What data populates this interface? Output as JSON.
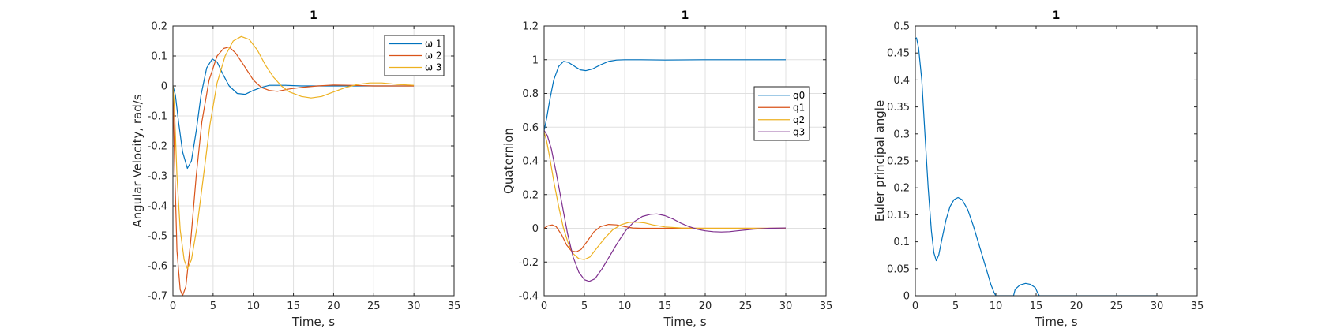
{
  "chart_data": [
    {
      "type": "line",
      "title": "1",
      "xlabel": "Time, s",
      "ylabel": "Angular Velocity, rad/s",
      "xlim": [
        0,
        35
      ],
      "ylim": [
        -0.7,
        0.2
      ],
      "xticks": [
        "0",
        "5",
        "10",
        "15",
        "20",
        "25",
        "30",
        "35"
      ],
      "yticks": [
        "0.2",
        "0.1",
        "0",
        "-0.1",
        "-0.2",
        "-0.3",
        "-0.4",
        "-0.5",
        "-0.6",
        "-0.7"
      ],
      "grid": true,
      "legend_location": "top-right",
      "series": [
        {
          "name": "ω 1",
          "color": "#0072BD",
          "points": [
            [
              0,
              0
            ],
            [
              0.3,
              -0.03
            ],
            [
              0.7,
              -0.12
            ],
            [
              1.2,
              -0.22
            ],
            [
              1.8,
              -0.275
            ],
            [
              2.3,
              -0.25
            ],
            [
              2.9,
              -0.15
            ],
            [
              3.5,
              -0.03
            ],
            [
              4.2,
              0.06
            ],
            [
              4.9,
              0.09
            ],
            [
              5.5,
              0.08
            ],
            [
              6.2,
              0.04
            ],
            [
              7,
              0
            ],
            [
              8,
              -0.025
            ],
            [
              9,
              -0.028
            ],
            [
              10,
              -0.015
            ],
            [
              11,
              -0.005
            ],
            [
              12,
              0.002
            ],
            [
              14,
              0.002
            ],
            [
              16,
              0
            ],
            [
              20,
              0
            ],
            [
              24,
              0
            ],
            [
              30,
              0
            ]
          ]
        },
        {
          "name": "ω 2",
          "color": "#D95319",
          "points": [
            [
              0,
              0
            ],
            [
              0.2,
              -0.25
            ],
            [
              0.5,
              -0.55
            ],
            [
              0.9,
              -0.68
            ],
            [
              1.2,
              -0.7
            ],
            [
              1.6,
              -0.67
            ],
            [
              2.2,
              -0.52
            ],
            [
              2.9,
              -0.3
            ],
            [
              3.6,
              -0.12
            ],
            [
              4.5,
              0.02
            ],
            [
              5.5,
              0.1
            ],
            [
              6.3,
              0.125
            ],
            [
              7,
              0.13
            ],
            [
              7.8,
              0.11
            ],
            [
              8.8,
              0.07
            ],
            [
              10,
              0.02
            ],
            [
              11,
              -0.005
            ],
            [
              12,
              -0.015
            ],
            [
              13,
              -0.018
            ],
            [
              14.5,
              -0.01
            ],
            [
              16,
              -0.005
            ],
            [
              18,
              0
            ],
            [
              20,
              0.003
            ],
            [
              22,
              0.002
            ],
            [
              25,
              0
            ],
            [
              30,
              0
            ]
          ]
        },
        {
          "name": "ω 3",
          "color": "#EDB120",
          "points": [
            [
              0,
              0
            ],
            [
              0.2,
              -0.08
            ],
            [
              0.5,
              -0.3
            ],
            [
              0.9,
              -0.48
            ],
            [
              1.4,
              -0.58
            ],
            [
              1.8,
              -0.61
            ],
            [
              2.3,
              -0.58
            ],
            [
              3,
              -0.47
            ],
            [
              3.8,
              -0.3
            ],
            [
              4.6,
              -0.13
            ],
            [
              5.5,
              0.01
            ],
            [
              6.5,
              0.1
            ],
            [
              7.5,
              0.15
            ],
            [
              8.5,
              0.165
            ],
            [
              9.5,
              0.155
            ],
            [
              10.5,
              0.12
            ],
            [
              11.5,
              0.07
            ],
            [
              12.5,
              0.03
            ],
            [
              13.5,
              0
            ],
            [
              14.5,
              -0.02
            ],
            [
              16,
              -0.035
            ],
            [
              17.2,
              -0.04
            ],
            [
              18.5,
              -0.035
            ],
            [
              20,
              -0.02
            ],
            [
              21.5,
              -0.005
            ],
            [
              23,
              0.005
            ],
            [
              24.5,
              0.01
            ],
            [
              26,
              0.01
            ],
            [
              28,
              0.005
            ],
            [
              30,
              0.002
            ]
          ]
        }
      ]
    },
    {
      "type": "line",
      "title": "1",
      "xlabel": "Time, s",
      "ylabel": "Quaternion",
      "xlim": [
        0,
        35
      ],
      "ylim": [
        -0.4,
        1.2
      ],
      "xticks": [
        "0",
        "5",
        "10",
        "15",
        "20",
        "25",
        "30",
        "35"
      ],
      "yticks": [
        "1.2",
        "1",
        "0.8",
        "0.6",
        "0.4",
        "0.2",
        "0",
        "-0.2",
        "-0.4"
      ],
      "grid": true,
      "legend_location": "right",
      "series": [
        {
          "name": "q0",
          "color": "#0072BD",
          "points": [
            [
              0,
              0.58
            ],
            [
              0.3,
              0.65
            ],
            [
              0.7,
              0.76
            ],
            [
              1.2,
              0.88
            ],
            [
              1.8,
              0.96
            ],
            [
              2.4,
              0.99
            ],
            [
              3,
              0.985
            ],
            [
              3.8,
              0.96
            ],
            [
              4.5,
              0.94
            ],
            [
              5.2,
              0.935
            ],
            [
              6,
              0.945
            ],
            [
              7,
              0.97
            ],
            [
              8,
              0.99
            ],
            [
              9,
              0.998
            ],
            [
              10,
              1
            ],
            [
              12,
              1
            ],
            [
              15,
              0.998
            ],
            [
              20,
              1
            ],
            [
              25,
              1
            ],
            [
              30,
              1
            ]
          ]
        },
        {
          "name": "q1",
          "color": "#D95319",
          "points": [
            [
              0,
              0
            ],
            [
              0.5,
              0.015
            ],
            [
              1,
              0.02
            ],
            [
              1.5,
              0.01
            ],
            [
              2.2,
              -0.04
            ],
            [
              2.8,
              -0.1
            ],
            [
              3.4,
              -0.135
            ],
            [
              4,
              -0.14
            ],
            [
              4.6,
              -0.125
            ],
            [
              5.3,
              -0.08
            ],
            [
              6.2,
              -0.02
            ],
            [
              7,
              0.01
            ],
            [
              8,
              0.023
            ],
            [
              9,
              0.02
            ],
            [
              10,
              0.01
            ],
            [
              11,
              0.002
            ],
            [
              12,
              0
            ],
            [
              14,
              0
            ],
            [
              16,
              0
            ],
            [
              20,
              0
            ],
            [
              25,
              0
            ],
            [
              30,
              0
            ]
          ]
        },
        {
          "name": "q2",
          "color": "#EDB120",
          "points": [
            [
              0,
              0.57
            ],
            [
              0.3,
              0.52
            ],
            [
              0.7,
              0.42
            ],
            [
              1.2,
              0.28
            ],
            [
              1.8,
              0.13
            ],
            [
              2.4,
              0
            ],
            [
              3,
              -0.09
            ],
            [
              3.6,
              -0.15
            ],
            [
              4.3,
              -0.18
            ],
            [
              5,
              -0.185
            ],
            [
              5.7,
              -0.17
            ],
            [
              6.5,
              -0.12
            ],
            [
              7.5,
              -0.06
            ],
            [
              8.5,
              -0.01
            ],
            [
              9.5,
              0.02
            ],
            [
              10.5,
              0.035
            ],
            [
              11.5,
              0.037
            ],
            [
              12.5,
              0.032
            ],
            [
              13.5,
              0.02
            ],
            [
              15,
              0.008
            ],
            [
              17,
              0.002
            ],
            [
              20,
              0
            ],
            [
              25,
              0
            ],
            [
              30,
              0
            ]
          ]
        },
        {
          "name": "q3",
          "color": "#7E2F8E",
          "points": [
            [
              0,
              0.58
            ],
            [
              0.4,
              0.55
            ],
            [
              0.9,
              0.47
            ],
            [
              1.5,
              0.33
            ],
            [
              2.2,
              0.15
            ],
            [
              2.9,
              -0.03
            ],
            [
              3.6,
              -0.17
            ],
            [
              4.3,
              -0.26
            ],
            [
              5,
              -0.305
            ],
            [
              5.6,
              -0.315
            ],
            [
              6.3,
              -0.3
            ],
            [
              7.2,
              -0.24
            ],
            [
              8.2,
              -0.16
            ],
            [
              9.2,
              -0.08
            ],
            [
              10.2,
              -0.01
            ],
            [
              11.2,
              0.04
            ],
            [
              12.2,
              0.07
            ],
            [
              13.2,
              0.083
            ],
            [
              14,
              0.085
            ],
            [
              15,
              0.075
            ],
            [
              16,
              0.055
            ],
            [
              17,
              0.03
            ],
            [
              18,
              0.01
            ],
            [
              19,
              -0.005
            ],
            [
              20,
              -0.015
            ],
            [
              21,
              -0.02
            ],
            [
              22,
              -0.022
            ],
            [
              23,
              -0.02
            ],
            [
              24,
              -0.015
            ],
            [
              25,
              -0.01
            ],
            [
              26,
              -0.005
            ],
            [
              28,
              0
            ],
            [
              30,
              0.002
            ]
          ]
        }
      ]
    },
    {
      "type": "line",
      "title": "1",
      "xlabel": "Time, s",
      "ylabel": "Euler principal angle",
      "xlim": [
        0,
        35
      ],
      "ylim": [
        0,
        0.5
      ],
      "xticks": [
        "0",
        "5",
        "10",
        "15",
        "20",
        "25",
        "30",
        "35"
      ],
      "yticks": [
        "0.5",
        "0.45",
        "0.4",
        "0.35",
        "0.3",
        "0.25",
        "0.2",
        "0.15",
        "0.1",
        "0.05",
        "0"
      ],
      "grid": false,
      "legend_location": "none",
      "series": [
        {
          "color": "#0072BD",
          "points": [
            [
              0,
              0.475
            ],
            [
              0.15,
              0.478
            ],
            [
              0.4,
              0.46
            ],
            [
              0.8,
              0.4
            ],
            [
              1.2,
              0.3
            ],
            [
              1.6,
              0.2
            ],
            [
              2,
              0.12
            ],
            [
              2.3,
              0.08
            ],
            [
              2.6,
              0.065
            ],
            [
              2.9,
              0.075
            ],
            [
              3.3,
              0.105
            ],
            [
              3.8,
              0.14
            ],
            [
              4.3,
              0.165
            ],
            [
              4.8,
              0.178
            ],
            [
              5.3,
              0.182
            ],
            [
              5.8,
              0.178
            ],
            [
              6.5,
              0.16
            ],
            [
              7.2,
              0.13
            ],
            [
              8,
              0.09
            ],
            [
              8.8,
              0.05
            ],
            [
              9.4,
              0.02
            ],
            [
              9.8,
              0.005
            ],
            [
              10,
              0
            ],
            [
              11,
              0
            ],
            [
              12.2,
              0
            ],
            [
              12.4,
              0.012
            ],
            [
              13,
              0.02
            ],
            [
              13.7,
              0.023
            ],
            [
              14.3,
              0.021
            ],
            [
              14.9,
              0.015
            ],
            [
              15.2,
              0.005
            ],
            [
              15.4,
              0
            ],
            [
              17,
              0
            ],
            [
              20,
              0
            ],
            [
              25,
              0
            ],
            [
              30,
              0
            ]
          ]
        }
      ]
    }
  ]
}
